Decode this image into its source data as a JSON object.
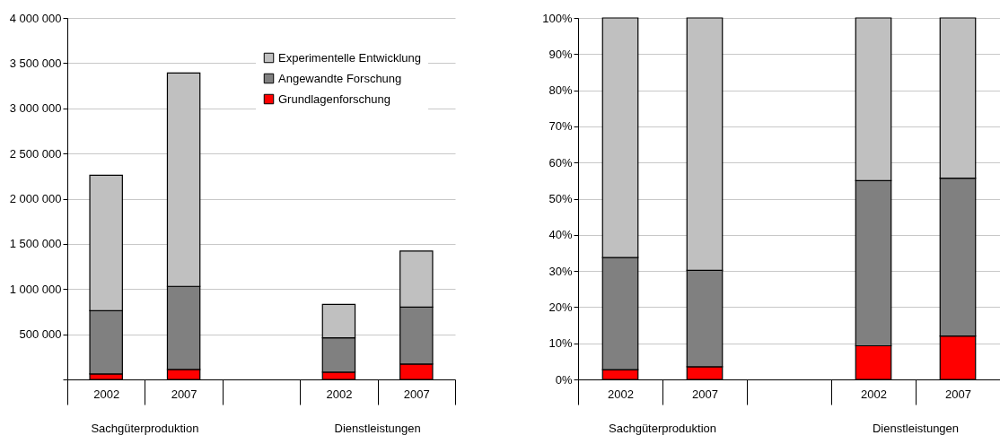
{
  "chart_data": [
    {
      "type": "bar",
      "stacked": true,
      "categories": [
        "2002",
        "2007",
        null,
        "2002",
        "2007"
      ],
      "series": [
        {
          "name": "Grundlagenforschung",
          "color": "#ff0000",
          "values": [
            60000,
            110000,
            null,
            80000,
            170000
          ]
        },
        {
          "name": "Angewandte Forschung",
          "color": "#808080",
          "values": [
            700000,
            920000,
            null,
            380000,
            630000
          ]
        },
        {
          "name": "Experimentelle Entwicklung",
          "color": "#c0c0c0",
          "values": [
            1500000,
            2360000,
            null,
            370000,
            620000
          ]
        }
      ],
      "ylim": [
        0,
        4000000
      ],
      "yticks": [
        {
          "value": 0,
          "label": null
        },
        {
          "value": 500000,
          "label": "500 000"
        },
        {
          "value": 1000000,
          "label": "1 000 000"
        },
        {
          "value": 1500000,
          "label": "1 500 000"
        },
        {
          "value": 2000000,
          "label": "2 000 000"
        },
        {
          "value": 2500000,
          "label": "2 500 000"
        },
        {
          "value": 3000000,
          "label": "3 000 000"
        },
        {
          "value": 3500000,
          "label": "3 500 000"
        },
        {
          "value": 4000000,
          "label": "4 000 000"
        }
      ],
      "grid": "y",
      "legend": "top right",
      "annotations": [
        "Sachgüterproduktion",
        "Dienstleistungen"
      ]
    },
    {
      "type": "bar",
      "stacked": true,
      "categories": [
        "2002",
        "2007",
        null,
        "2002",
        "2007"
      ],
      "series": [
        {
          "color": "#ff0000",
          "values": [
            2.7,
            3.5,
            null,
            9.3,
            12.0
          ]
        },
        {
          "color": "#808080",
          "values": [
            31.0,
            26.7,
            null,
            45.7,
            43.7
          ]
        },
        {
          "color": "#c0c0c0",
          "values": [
            66.3,
            69.8,
            null,
            45.0,
            44.3
          ]
        }
      ],
      "ylim": [
        0,
        100
      ],
      "yticks": [
        {
          "value": 0,
          "label": "0%"
        },
        {
          "value": 10,
          "label": "10%"
        },
        {
          "value": 20,
          "label": "20%"
        },
        {
          "value": 30,
          "label": "30%"
        },
        {
          "value": 40,
          "label": "40%"
        },
        {
          "value": 50,
          "label": "50%"
        },
        {
          "value": 60,
          "label": "60%"
        },
        {
          "value": 70,
          "label": "70%"
        },
        {
          "value": 80,
          "label": "80%"
        },
        {
          "value": 90,
          "label": "90%"
        },
        {
          "value": 100,
          "label": "100%"
        }
      ],
      "grid": "y",
      "legend": false,
      "annotations": [
        "Sachgüterproduktion",
        "Dienstleistungen"
      ]
    }
  ]
}
